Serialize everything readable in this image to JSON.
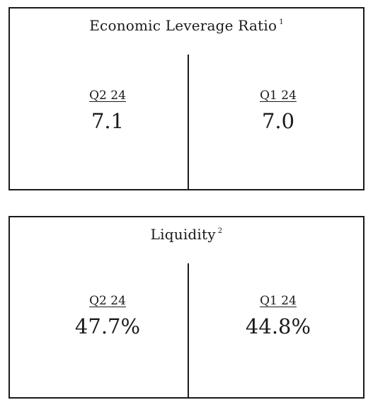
{
  "panels": [
    {
      "title": "Economic Leverage Ratio",
      "footnote": "1",
      "columns": [
        {
          "period": "Q2 24",
          "value": "7.1"
        },
        {
          "period": "Q1 24",
          "value": "7.0"
        }
      ]
    },
    {
      "title": "Liquidity",
      "footnote": "2",
      "columns": [
        {
          "period": "Q2 24",
          "value": "47.7%"
        },
        {
          "period": "Q1 24",
          "value": "44.8%"
        }
      ]
    }
  ]
}
